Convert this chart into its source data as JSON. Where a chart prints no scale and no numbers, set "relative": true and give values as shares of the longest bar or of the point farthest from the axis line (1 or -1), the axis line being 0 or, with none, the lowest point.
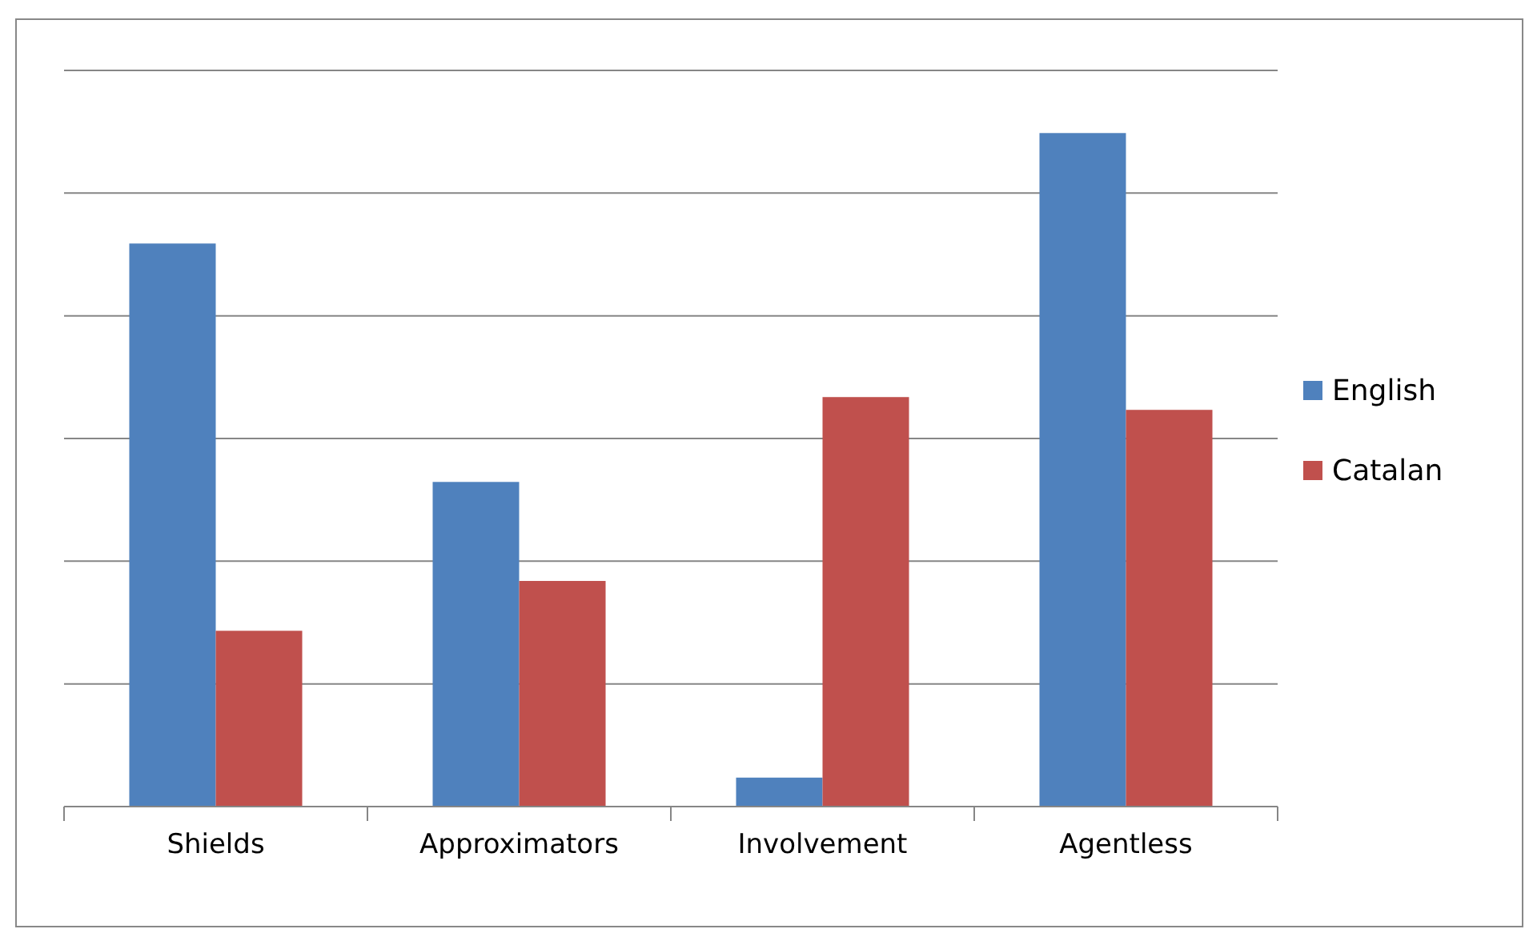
{
  "chart_data": {
    "type": "bar",
    "relative": true,
    "grid": "y",
    "legend": "right",
    "categories": [
      "Shields",
      "Approximators",
      "Involvement",
      "Agentless"
    ],
    "series": [
      {
        "name": "English",
        "color": "#4f81bd",
        "values": [
          0.836,
          0.482,
          0.043,
          1
        ]
      },
      {
        "name": "Catalan",
        "color": "#c0504d",
        "values": [
          0.261,
          0.335,
          0.608,
          0.589
        ]
      }
    ]
  }
}
